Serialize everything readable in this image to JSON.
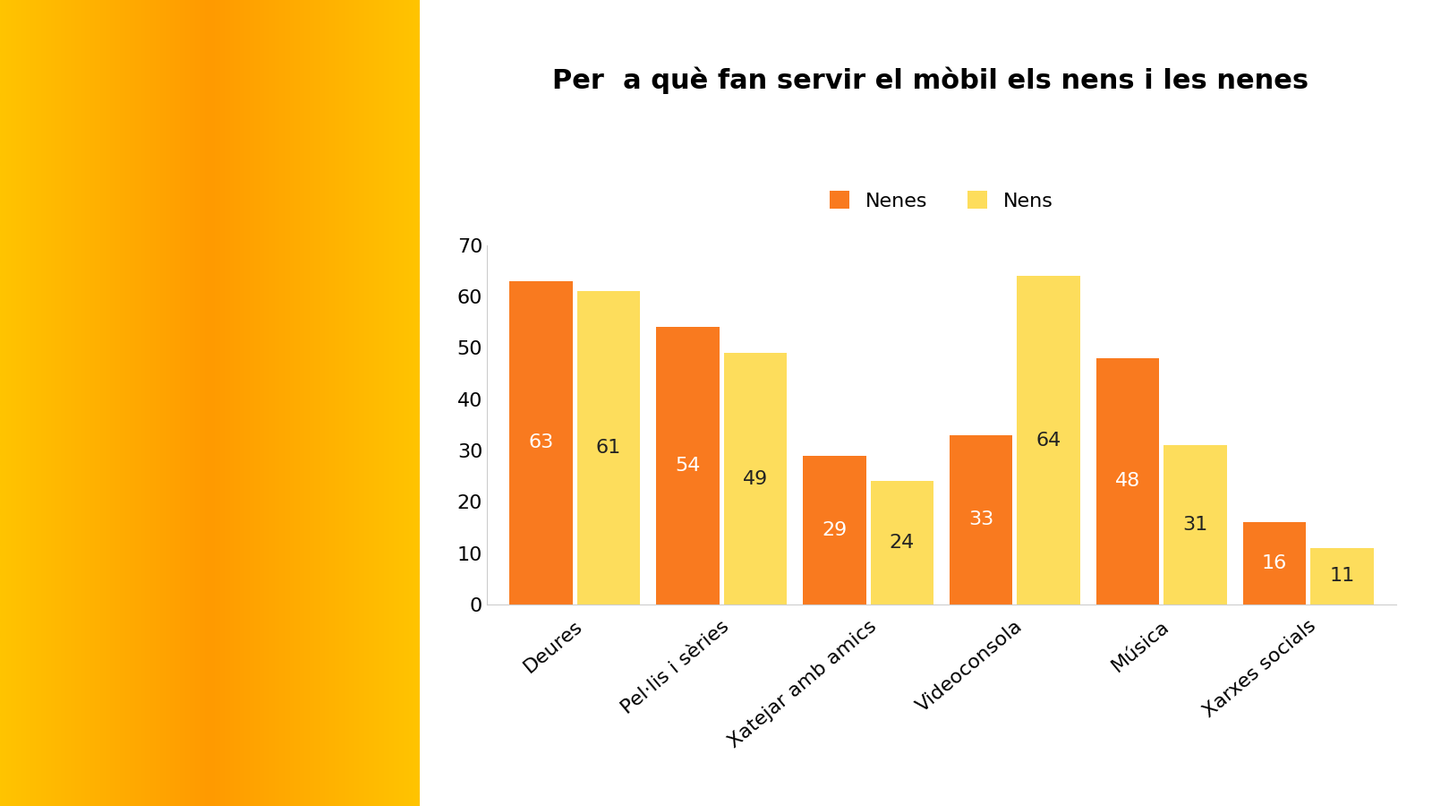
{
  "chart_data": {
    "type": "bar",
    "title": "Per  a què fan servir el mòbil els nens i les nenes",
    "categories": [
      "Deures",
      "Pel·lis i sèries",
      "Xatejar amb amics",
      "Videoconsola",
      "Música",
      "Xarxes socials"
    ],
    "series": [
      {
        "name": "Nenes",
        "color": "#F97A1F",
        "values": [
          63,
          54,
          29,
          33,
          48,
          16
        ]
      },
      {
        "name": "Nens",
        "color": "#FDDD5C",
        "values": [
          61,
          49,
          24,
          64,
          31,
          11
        ]
      }
    ],
    "ylim": [
      0,
      70
    ],
    "yticks": [
      0,
      10,
      20,
      30,
      40,
      50,
      60,
      70
    ],
    "grid": false,
    "legend": "upper center",
    "data_labels": true
  }
}
